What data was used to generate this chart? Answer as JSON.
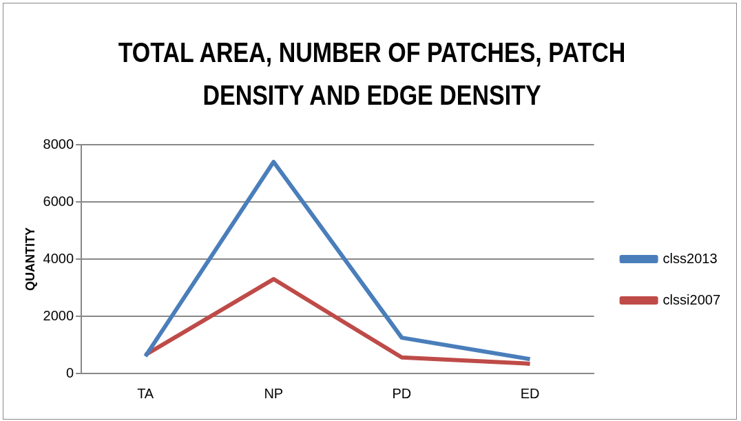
{
  "chart_data": {
    "type": "line",
    "title": "TOTAL AREA, NUMBER OF PATCHES, PATCH DENSITY AND EDGE DENSITY",
    "ylabel": "QUANTITY",
    "categories": [
      "TA",
      "NP",
      "PD",
      "ED"
    ],
    "series": [
      {
        "name": "clss2013",
        "color": "#4a7ebb",
        "values": [
          600,
          7400,
          1250,
          500
        ]
      },
      {
        "name": "clssi2007",
        "color": "#be4b48",
        "values": [
          650,
          3300,
          560,
          340
        ]
      }
    ],
    "ylim": [
      0,
      8000
    ],
    "yticks": [
      0,
      2000,
      4000,
      6000,
      8000
    ],
    "grid": "y",
    "legend": "right",
    "marker": "none",
    "line_style": "solid"
  }
}
